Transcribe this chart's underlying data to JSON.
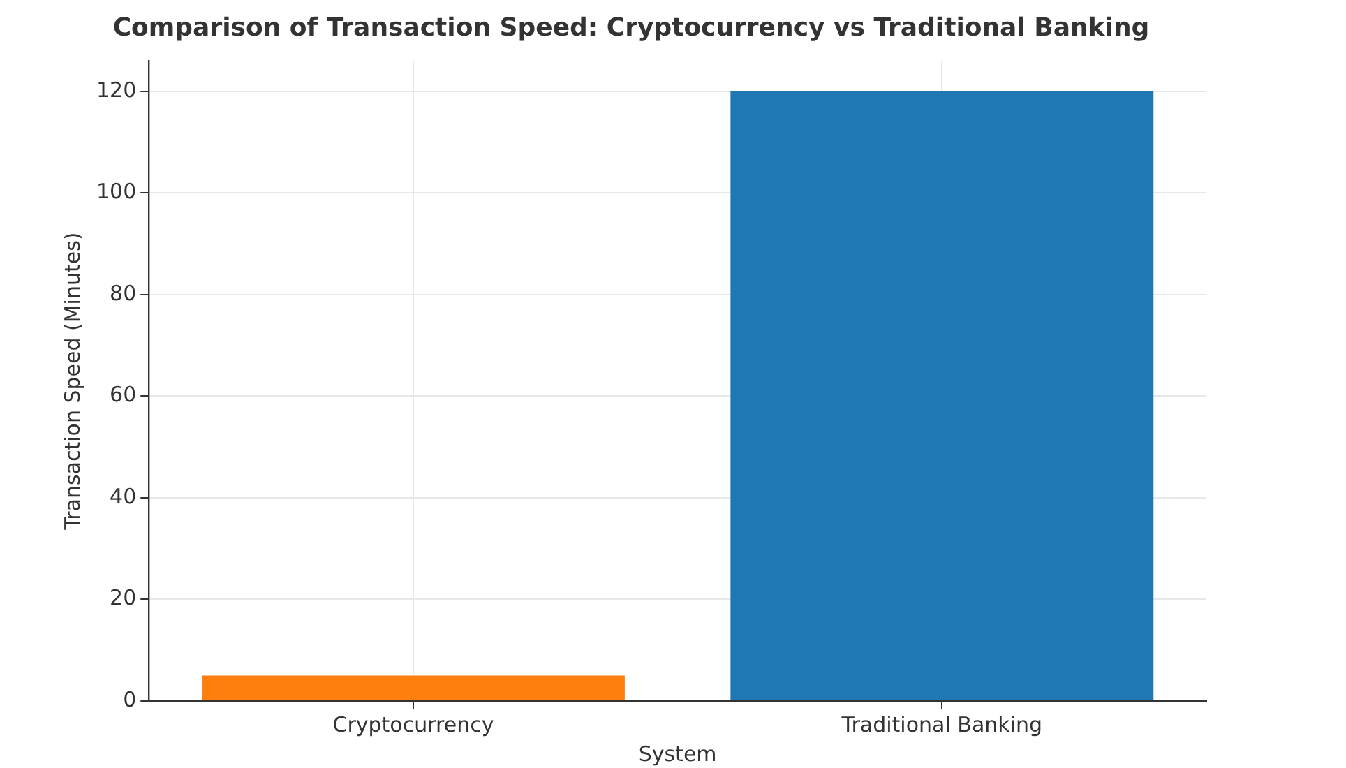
{
  "chart_data": {
    "type": "bar",
    "title": "Comparison of Transaction Speed: Cryptocurrency vs Traditional Banking",
    "xlabel": "System",
    "ylabel": "Transaction Speed (Minutes)",
    "categories": [
      "Cryptocurrency",
      "Traditional Banking"
    ],
    "values": [
      5,
      120
    ],
    "colors": [
      "#ff7f0e",
      "#1f77b4"
    ],
    "ylim": [
      0,
      126
    ],
    "yticks": [
      0,
      20,
      40,
      60,
      80,
      100,
      120
    ],
    "grid": true
  }
}
